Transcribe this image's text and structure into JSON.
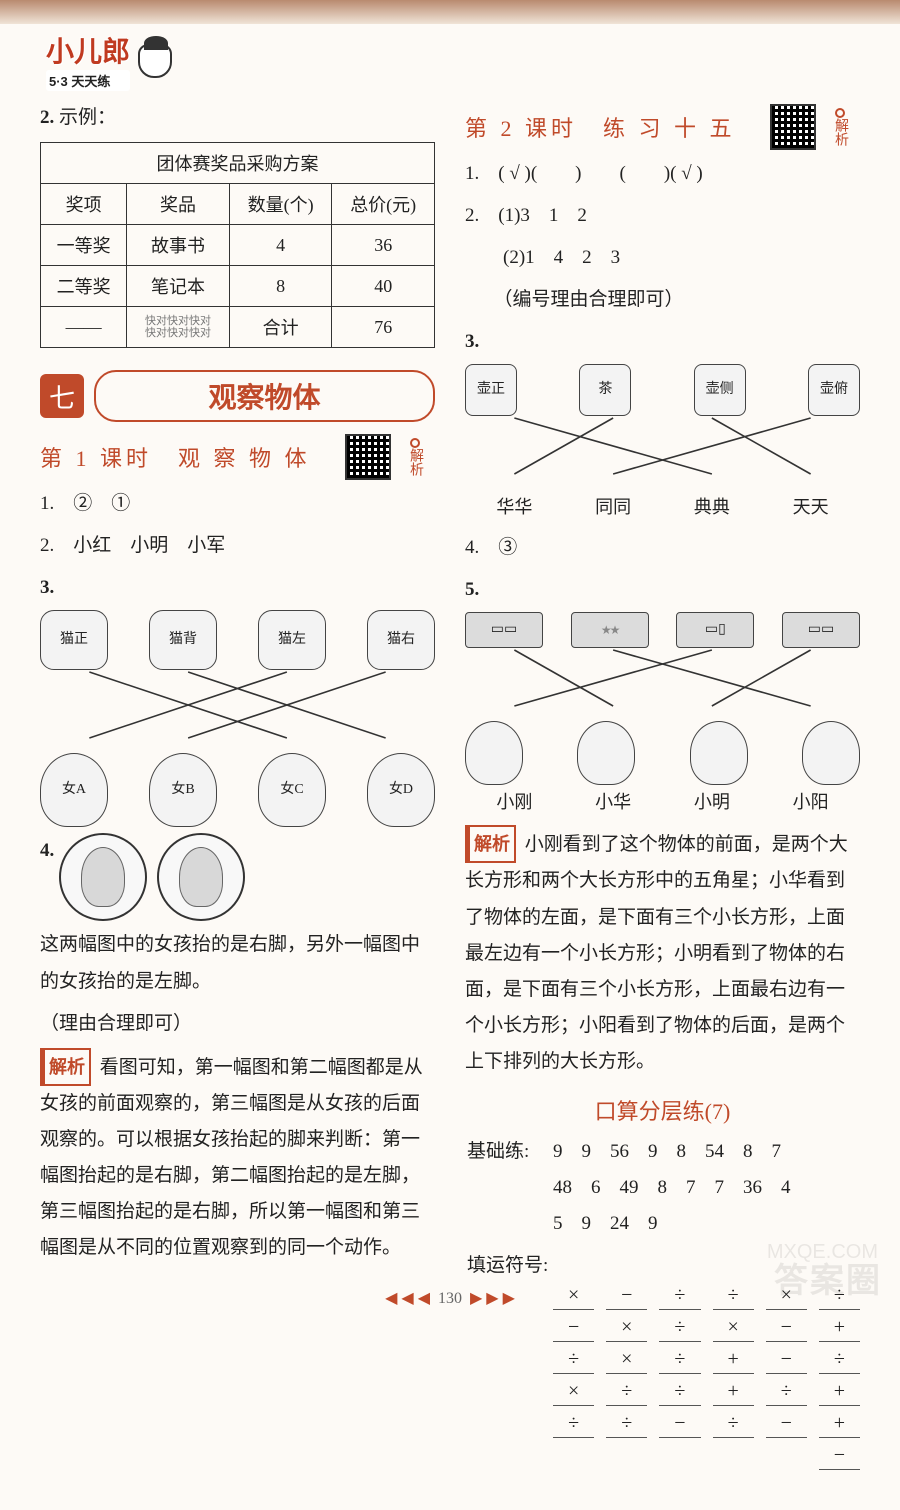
{
  "logo": {
    "main": "小儿郎",
    "sub": "5·3 天天练"
  },
  "left": {
    "q2": {
      "num": "2.",
      "label": "示例："
    },
    "table": {
      "caption": "团体赛奖品采购方案",
      "headers": [
        "奖项",
        "奖品",
        "数量(个)",
        "总价(元)"
      ],
      "rows": [
        [
          "一等奖",
          "故事书",
          "4",
          "36"
        ],
        [
          "二等奖",
          "笔记本",
          "8",
          "40"
        ],
        [
          "——",
          "合计",
          "",
          "76"
        ]
      ],
      "note_small": "快对快对快对\n快对快对快对"
    },
    "chapter": {
      "num": "七",
      "title": "观察物体"
    },
    "lesson1": {
      "title": "第 1 课时　观 察 物 体",
      "qr_label": "解析"
    },
    "l1q1": "1.　②　①",
    "l1q2": "2.　小红　小明　小军",
    "l1q3_num": "3.",
    "l1q3_cats": [
      "猫正",
      "猫背",
      "猫左",
      "猫右"
    ],
    "l1q3_girls": [
      "女A",
      "女B",
      "女C",
      "女D"
    ],
    "l1q3_lines": [
      [
        0,
        2
      ],
      [
        1,
        3
      ],
      [
        2,
        0
      ],
      [
        3,
        1
      ]
    ],
    "l1q4_num": "4.",
    "l1q4_text1": "这两幅图中的女孩抬的是右脚，另外一幅图中的女孩抬的是左脚。",
    "l1q4_text2": "（理由合理即可）",
    "l1q4_jiexi": "看图可知，第一幅图和第二幅图都是从女孩的前面观察的，第三幅图是从女孩的后面观察的。可以根据女孩抬起的脚来判断：第一幅图抬起的是右脚，第二幅图抬起的是左脚，第三幅图抬起的是右脚，所以第一幅图和第三幅图是从不同的位置观察到的同一个动作。"
  },
  "right": {
    "lesson2": {
      "title": "第 2 课时　练 习 十 五",
      "qr_label": "解析"
    },
    "r1": "1.　( √ )(　　)　　(　　)( √ )",
    "r2a": "2.　(1)3　1　2",
    "r2b": "　　(2)1　4　2　3",
    "r2c": "　　（编号理由合理即可）",
    "r3_num": "3.",
    "r3_pots": [
      "壶正",
      "茶",
      "壶侧",
      "壶俯"
    ],
    "r3_names": [
      "华华",
      "同同",
      "典典",
      "天天"
    ],
    "r3_lines": [
      [
        0,
        2
      ],
      [
        1,
        0
      ],
      [
        2,
        3
      ],
      [
        3,
        1
      ]
    ],
    "r4": "4.　③",
    "r5_num": "5.",
    "r5_views": [
      "▭▭",
      "▭★★▭",
      "▭▯",
      "▭▭"
    ],
    "r5_kids": [
      "小刚",
      "小华",
      "小明",
      "小阳"
    ],
    "r5_lines": [
      [
        0,
        1
      ],
      [
        1,
        3
      ],
      [
        2,
        0
      ],
      [
        3,
        2
      ]
    ],
    "r5_jiexi": "小刚看到了这个物体的前面，是两个大长方形和两个大长方形中的五角星；小华看到了物体的左面，是下面有三个小长方形，上面最左边有一个小长方形；小明看到了物体的右面，是下面有三个小长方形，上面最右边有一个小长方形；小阳看到了物体的后面，是两个上下排列的大长方形。",
    "kousuan_title": "口算分层练(7)",
    "jichu_label": "基础练:",
    "jichu_rows": [
      "9　9　56　9　8　54　8　7",
      "48　6　49　8　7　7　36　4",
      "5　9　24　9"
    ],
    "ops_label": "填运符号:",
    "ops": [
      [
        "×",
        "−",
        "÷",
        "÷",
        "×",
        "÷"
      ],
      [
        "−",
        "×",
        "÷",
        "×",
        "−",
        "+"
      ],
      [
        "÷",
        "×",
        "÷",
        "+",
        "−",
        "÷"
      ],
      [
        "×",
        "÷",
        "÷",
        "+",
        "÷",
        "+"
      ],
      [
        "÷",
        "÷",
        "−",
        "÷",
        "−",
        "+"
      ],
      [
        "",
        "",
        "",
        "",
        "",
        "−"
      ]
    ]
  },
  "jiexi_tag": "解析",
  "page_number": "130",
  "watermark_main": "答案圈",
  "watermark_sub": "MXQE.COM"
}
